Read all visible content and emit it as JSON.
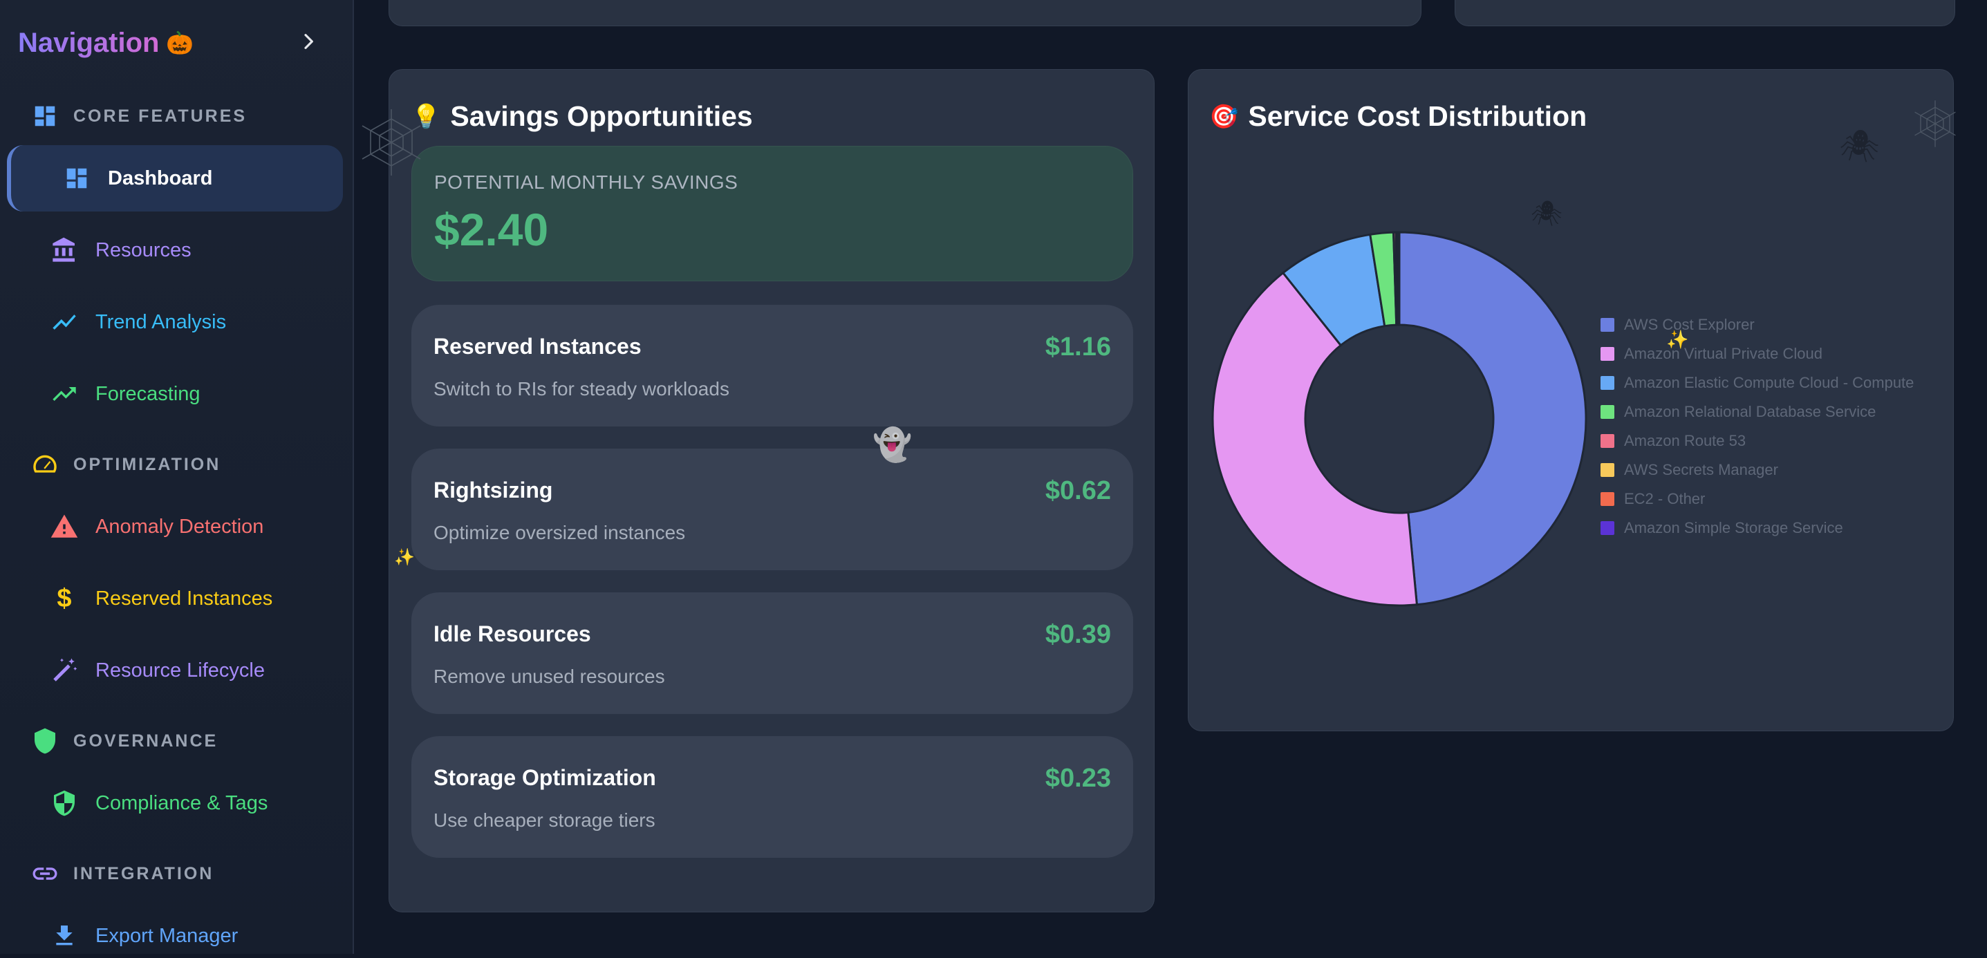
{
  "sidebar": {
    "title": "Navigation",
    "title_emoji": "🎃",
    "sections": {
      "core": "CORE FEATURES",
      "optimization": "OPTIMIZATION",
      "governance": "GOVERNANCE",
      "integration": "INTEGRATION"
    },
    "items": {
      "dashboard": "Dashboard",
      "resources": "Resources",
      "trend": "Trend Analysis",
      "forecasting": "Forecasting",
      "anomaly": "Anomaly Detection",
      "reserved": "Reserved Instances",
      "lifecycle": "Resource Lifecycle",
      "compliance": "Compliance & Tags",
      "export": "Export Manager"
    },
    "colors": {
      "resources": "#a78bfa",
      "trend": "#38bdf8",
      "forecasting": "#4ade80",
      "anomaly": "#f87171",
      "reserved": "#facc15",
      "lifecycle": "#a78bfa",
      "compliance": "#4ade80",
      "export": "#60a5fa"
    }
  },
  "savings": {
    "title": "Savings Opportunities",
    "title_emoji": "💡",
    "potential_label": "POTENTIAL MONTHLY SAVINGS",
    "potential_value": "$2.40",
    "opportunities": [
      {
        "title": "Reserved Instances",
        "description": "Switch to RIs for steady workloads",
        "value": "$1.16"
      },
      {
        "title": "Rightsizing",
        "description": "Optimize oversized instances",
        "value": "$0.62"
      },
      {
        "title": "Idle Resources",
        "description": "Remove unused resources",
        "value": "$0.39"
      },
      {
        "title": "Storage Optimization",
        "description": "Use cheaper storage tiers",
        "value": "$0.23"
      }
    ]
  },
  "distribution": {
    "title": "Service Cost Distribution",
    "title_emoji": "🎯"
  },
  "chart_data": {
    "type": "pie",
    "categories": [
      "AWS Cost Explorer",
      "Amazon Virtual Private Cloud",
      "Amazon Elastic Compute Cloud - Compute",
      "Amazon Relational Database Service",
      "Amazon Route 53",
      "AWS Secrets Manager",
      "EC2 - Other",
      "Amazon Simple Storage Service"
    ],
    "values": [
      48.5,
      40.8,
      8.2,
      2.0,
      0.2,
      0.1,
      0.1,
      0.1
    ],
    "colors": [
      "#6b7fe0",
      "#e597f2",
      "#67a9f5",
      "#6ee37f",
      "#f0728a",
      "#f7c95b",
      "#f26b4e",
      "#5b33d6"
    ],
    "legend_position": "right"
  }
}
